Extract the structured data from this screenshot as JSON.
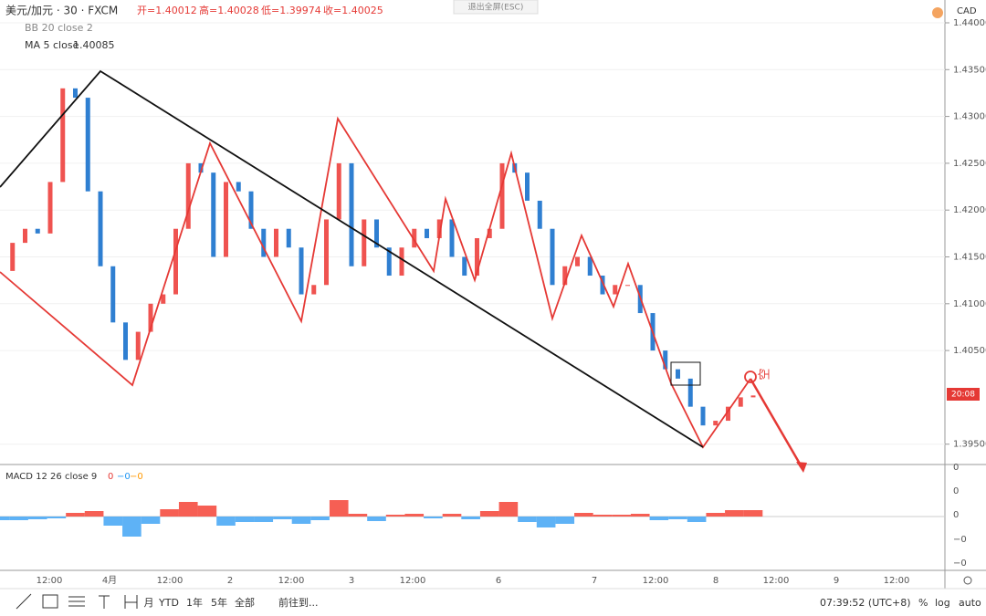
{
  "header": {
    "symbol": "美元/加元 · 30 · FXCM",
    "open": "开=1.40012",
    "high": "高=1.40028",
    "low": "低=1.39974",
    "close": "收=1.40025",
    "bb": "BB 20 close 2",
    "ma": "MA 5 close",
    "ma_value": "1.40085",
    "exit": "退出全屏(ESC)"
  },
  "price_axis": {
    "currency": "CAD",
    "ticks": [
      {
        "value": 1.44,
        "label": "1.44000"
      },
      {
        "value": 1.435,
        "label": "1.43500"
      },
      {
        "value": 1.43,
        "label": "1.43000"
      },
      {
        "value": 1.425,
        "label": "1.42500"
      },
      {
        "value": 1.42,
        "label": "1.42000"
      },
      {
        "value": 1.415,
        "label": "1.41500"
      },
      {
        "value": 1.41,
        "label": "1.41000"
      },
      {
        "value": 1.405,
        "label": "1.40500"
      },
      {
        "value": 1.395,
        "label": "1.39500"
      }
    ],
    "last_label": "20:08"
  },
  "prices": [
    1.4135,
    1.4165,
    1.418,
    1.4175,
    1.423,
    1.433,
    1.432,
    1.422,
    1.414,
    1.408,
    1.404,
    1.407,
    1.41,
    1.411,
    1.418,
    1.425,
    1.424,
    1.415,
    1.423,
    1.422,
    1.418,
    1.415,
    1.418,
    1.416,
    1.411,
    1.412,
    1.419,
    1.425,
    1.414,
    1.419,
    1.416,
    1.413,
    1.416,
    1.418,
    1.417,
    1.419,
    1.415,
    1.413,
    1.417,
    1.418,
    1.425,
    1.424,
    1.421,
    1.418,
    1.412,
    1.414,
    1.415,
    1.413,
    1.411,
    1.412,
    1.412,
    1.409,
    1.405,
    1.403,
    1.402,
    1.399,
    1.397,
    1.3975,
    1.399,
    1.4,
    1.4002
  ],
  "macd": {
    "label": "MACD 12 26 close 9",
    "v1": "0",
    "v2": "−0",
    "v3": "−0",
    "ticks": [
      "0",
      "0",
      "0",
      "−0",
      "−0"
    ],
    "hist": [
      -4,
      -4,
      -3,
      -2,
      4,
      6,
      -10,
      -22,
      -8,
      8,
      16,
      12,
      -10,
      -6,
      -6,
      -3,
      -8,
      -4,
      18,
      3,
      -5,
      2,
      3,
      -2,
      3,
      -3,
      6,
      16,
      -6,
      -12,
      -8,
      4,
      2,
      2,
      3,
      -4,
      -3,
      -6,
      4,
      7,
      7
    ]
  },
  "time_axis": [
    "12:00",
    "4月",
    "12:00",
    "2",
    "12:00",
    "3",
    "12:00",
    "6",
    "7",
    "12:00",
    "8",
    "12:00",
    "9",
    "12:00"
  ],
  "annotation": "空",
  "toolbar": {
    "ranges": [
      "月",
      "YTD",
      "1年",
      "5年",
      "全部"
    ],
    "goto": "前往到...",
    "clock": "07:39:52 (UTC+8)",
    "percent": "%",
    "log": "log",
    "auto": "auto"
  }
}
